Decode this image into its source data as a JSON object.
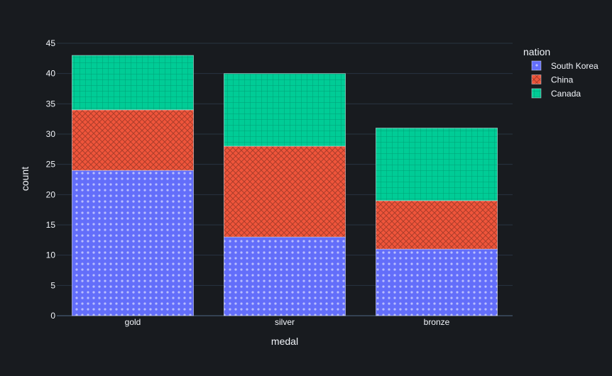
{
  "chart_data": {
    "type": "bar",
    "stacked": true,
    "categories": [
      "gold",
      "silver",
      "bronze"
    ],
    "series": [
      {
        "name": "South Korea",
        "values": [
          24,
          13,
          11
        ],
        "color": "#636efa",
        "pattern": "dots"
      },
      {
        "name": "China",
        "values": [
          10,
          15,
          8
        ],
        "color": "#ef553b",
        "pattern": "crosshatch"
      },
      {
        "name": "Canada",
        "values": [
          9,
          12,
          12
        ],
        "color": "#00cc96",
        "pattern": "grid"
      }
    ],
    "xlabel": "medal",
    "ylabel": "count",
    "ylim": [
      0,
      45
    ],
    "yticks": [
      0,
      5,
      10,
      15,
      20,
      25,
      30,
      35,
      40,
      45
    ],
    "legend": {
      "title": "nation",
      "position": "top-right"
    },
    "grid": true,
    "theme": {
      "background": "#181b1f",
      "gridline": "#283442",
      "text": "#f2f5fa",
      "bar_outline": "#e6ebf2"
    }
  }
}
